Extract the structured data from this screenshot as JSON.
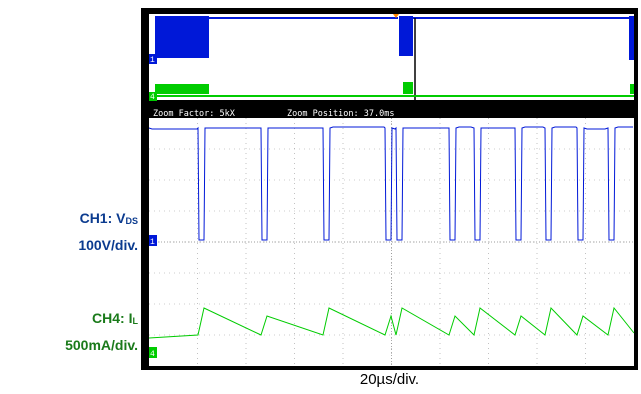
{
  "channels": {
    "ch1": {
      "name": "CH1: V",
      "sub": "DS",
      "scale": "100V/div.",
      "color": "#0018d8",
      "marker": "1"
    },
    "ch4": {
      "name": "CH4: I",
      "sub": "L",
      "scale": "500mA/div.",
      "color": "#00cc00",
      "marker": "4"
    }
  },
  "zoom": {
    "factor_text": "Zoom Factor: 5kX",
    "position_text": "Zoom Position: 37.0ms"
  },
  "timebase": "20µs/div.",
  "colors": {
    "background": "#ffffff",
    "screen": "#000000",
    "trigger_marker": "#ff8800"
  }
}
